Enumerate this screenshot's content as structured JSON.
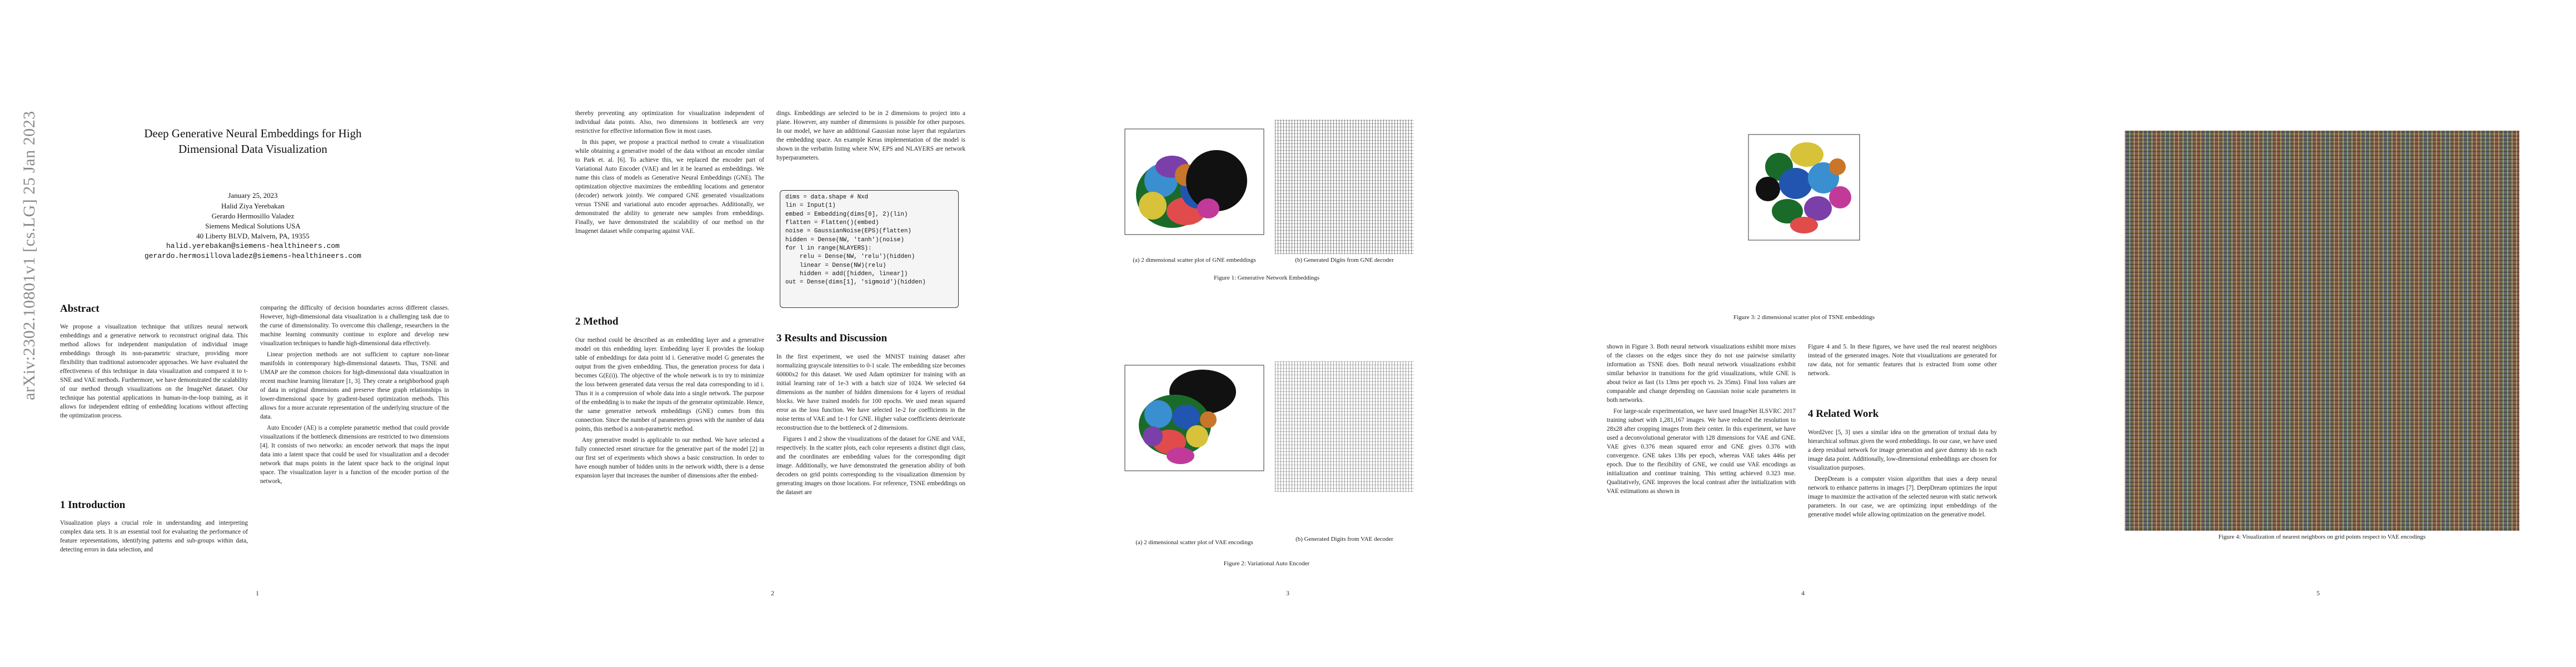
{
  "arxiv_stamp": "arXiv:2302.10801v1  [cs.LG]  25 Jan 2023",
  "page1": {
    "title": "Deep Generative Neural Embeddings for High Dimensional Data Visualization",
    "date": "January 25, 2023",
    "authors": [
      "Halid Ziya Yerebakan",
      "Gerardo Hermosillo Valadez",
      "Siemens Medical Solutions USA",
      "40 Liberty BLVD, Malvern, PA, 19355"
    ],
    "emails": [
      "halid.yerebakan@siemens-healthineers.com",
      "gerardo.hermosillovaladez@siemens-healthineers.com"
    ],
    "abstract_heading": "Abstract",
    "abstract": "We propose a visualization technique that utilizes neural network embeddings and a generative network to reconstruct original data. This method allows for independent manipulation of individual image embeddings through its non-parametric structure, providing more flexibility than traditional autoencoder approaches. We have evaluated the effectiveness of this technique in data visualization and compared it to t-SNE and VAE methods. Furthermore, we have demonstrated the scalability of our method through visualizations on the ImageNet dataset. Our technique has potential applications in human-in-the-loop training, as it allows for independent editing of embedding locations without affecting the optimization process.",
    "intro_heading": "1   Introduction",
    "intro": "Visualization plays a crucial role in understanding and interpreting complex data sets. It is an essential tool for evaluating the performance of feature representations, identifying patterns and sub-groups within data, detecting errors in data selection, and",
    "col2": [
      "comparing the difficulty of decision boundaries across different classes. However, high-dimensional data visualization is a challenging task due to the curse of dimensionality. To overcome this challenge, researchers in the machine learning community continue to explore and develop new visualization techniques to handle high-dimensional data effectively.",
      "Linear projection methods are not sufficient to capture non-linear manifolds in contemporary high-dimensional datasets. Thus, TSNE and UMAP are the common choices for high-dimensional data visualization in recent machine learning literature [1, 3]. They create a neighborhood graph of data in original dimensions and preserve these graph relationships in lower-dimensional space by gradient-based optimization methods. This allows for a more accurate representation of the underlying structure of the data.",
      "Auto Encoder (AE) is a complete parametric method that could provide visualizations if the bottleneck dimensions are restricted to two dimensions [4]. It consists of two networks: an encoder network that maps the input data into a latent space that could be used for visualization and a decoder network that maps points in the latent space back to the original input space. The visualization layer is a function of the encoder portion of the network,"
    ],
    "page_number": "1"
  },
  "page2": {
    "col1": [
      "thereby preventing any optimization for visualization independent of individual data points. Also, two dimensions in bottleneck are very restrictive for effective information flow in most cases.",
      "In this paper, we propose a practical method to create a visualization while obtaining a generative model of the data without an encoder similar to Park et. al. [6]. To achieve this, we replaced the encoder part of Variational Auto Encoder (VAE) and let it be learned as embeddings. We name this class of models as Generative Neural Embeddings (GNE). The optimization objective maximizes the embedding locations and generator (decoder) network jointly. We compared GNE generated visualizations versus TSNE and variational auto encoder approaches. Additionally, we demonstrated the ability to generate new samples from embeddings. Finally, we have demonstrated the scalability of our method on the Imagenet dataset while comparing against VAE."
    ],
    "method_heading": "2   Method",
    "method": [
      "Our method could be described as an embedding layer and a generative model on this embedding layer. Embedding layer E provides the lookup table of embeddings for data point id i. Generative model G generates the output from the given embedding. Thus, the generation process for data i becomes G(E(i)). The objective of the whole network is to try to minimize the loss between generated data versus the real data corresponding to id i. Thus it is a compression of whole data into a single network. The purpose of the embedding is to make the inputs of the generator optimizable. Hence, the same generative network embeddings (GNE) comes from this connection. Since the number of parameters grows with the number of data points, this method is a non-parametric method.",
      "Any generative model is applicable to our method. We have selected a fully connected resnet structure for the generative part of the model [2] in our first set of experiments which shows a basic construction. In order to have enough number of hidden units in the network width, there is a dense expansion layer that increases the number of dimensions after the embed-"
    ],
    "col2_top": "dings. Embeddings are selected to be in 2 dimensions to project into a plane. However, any number of dimensions is possible for other purposes. In our model, we have an additional Gaussian noise layer that regularizes the embedding space. An example Keras implementation of the model is shown in the verbatim listing where NW, EPS and NLAYERS are network hyperparameters.",
    "code": [
      "dims = data.shape # Nxd",
      "lin = Input(1)",
      "embed = Embedding(dims[0], 2)(lin)",
      "flatten = Flatten()(embed)",
      "noise = GaussianNoise(EPS)(flatten)",
      "hidden = Dense(NW, 'tanh')(noise)",
      "for l in range(NLAYERS):",
      "    relu = Dense(NW, 'relu')(hidden)",
      "    linear = Dense(NW)(relu)",
      "    hidden = add([hidden, linear])",
      "out = Dense(dims[1], 'sigmoid')(hidden)"
    ],
    "results_heading": "3   Results and Discussion",
    "results": [
      "In the first experiment, we used the MNIST training dataset after normalizing grayscale intensities to 0-1 scale. The embedding size becomes 60000x2 for this dataset. We used Adam optimizer for training with an initial learning rate of 1e-3 with a batch size of 1024. We selected 64 dimensions as the number of hidden dimensions for 4 layers of residual blocks. We have trained models for 100 epochs. We used mean squared error as the loss function. We have selected 1e-2 for coefficients in the noise terms of VAE and 1e-1 for GNE. Higher value coefficients deteriorate reconstruction due to the bottleneck of 2 dimensions.",
      "Figures 1 and 2 show the visualizations of the dataset for GNE and VAE, respectively. In the scatter plots, each color represents a distinct digit class, and the coordinates are embedding values for the corresponding digit image. Additionally, we have demonstrated the generation ability of both decoders on grid points corresponding to the visualization dimension by generating images on those locations. For reference, TSNE embeddings on the dataset are"
    ],
    "page_number": "2"
  },
  "page3": {
    "cap1a": "(a) 2 dimensional scatter plot of GNE embeddings",
    "cap1b": "(b) Generated Digits from GNE decoder",
    "fig1": "Figure 1: Generative Network Embeddings",
    "cap2a": "(a) 2 dimensional scatter plot of VAE encodings",
    "cap2b": "(b) Generated Digits from VAE decoder",
    "fig2": "Figure 2: Variational Auto Encoder",
    "page_number": "3"
  },
  "page4": {
    "fig3": "Figure 3: 2 dimensional scatter plot of TSNE embeddings",
    "col1": [
      "shown in Figure 3. Both neural network visualizations exhibit more mixes of the classes on the edges since they do not use pairwise similarity information as TSNE does. Both neural network visualizations exhibit similar behavior in transitions for the grid visualizations, while GNE is about twice as fast (1s 13ms per epoch vs. 2s 35ms). Final loss values are comparable and change depending on Gaussian noise scale parameters in both networks.",
      "For large-scale experimentation, we have used ImageNet ILSVRC 2017 training subset with 1,281,167 images. We have reduced the resolution to 28x28 after cropping images from their center. In this experiment, we have used a deconvolutional generator with 128 dimensions for VAE and GNE. VAE gives 0.376 mean squared error and GNE gives 0.376 with convergence. GNE takes 138s per epoch, whereas VAE takes 446s per epoch. Due to the flexibility of GNE, we could use VAE encodings as initialization and continue training. This setting achieved 0.323 mse. Qualitatively, GNE improves the local contrast after the initialization with VAE estimations as shown in"
    ],
    "col2_top": "Figure 4 and 5. In these figures, we have used the real nearest neighbors instead of the generated images. Note that visualizations are generated for raw data, not for semantic features that is extracted from some other network.",
    "related_heading": "4   Related Work",
    "related": [
      "Word2vec [5, 3] uses a similar idea on the generation of textual data by hierarchical softmax given the word embeddings. In our case, we have used a deep residual network for image generation and gave dummy ids to each image data point. Additionally, low-dimensional embeddings are chosen for visualization purposes.",
      "DeepDream is a computer vision algorithm that uses a deep neural network to enhance patterns in images [7]. DeepDream optimizes the input image to maximize the activation of the selected neuron with static network parameters. In our case, we are optimizing input embeddings of the generative model while allowing optimization on the generative model."
    ],
    "page_number": "4"
  },
  "page5": {
    "fig4": "Figure 4: Visualization of nearest neighbors on grid points respect to VAE encodings",
    "page_number": "5"
  }
}
